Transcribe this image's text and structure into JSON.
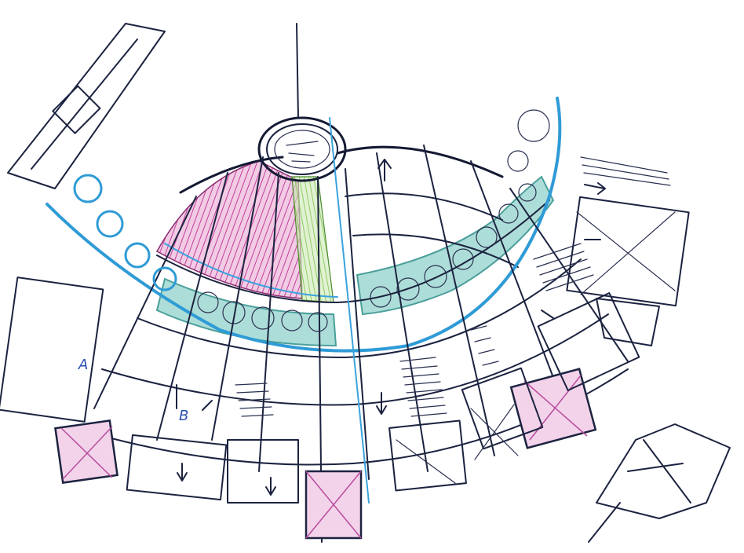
{
  "labels": {
    "zone_a": "A",
    "zone_b": "B"
  },
  "colors": {
    "ink": "#1c2340",
    "blue_pencil": "#2f9bd6",
    "teal_band": "#3fb5b0",
    "magenta_hatch": "#c2409a",
    "green_hatch": "#7cc24a",
    "label_blue": "#2a4fb0"
  }
}
